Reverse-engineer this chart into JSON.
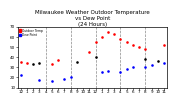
{
  "title": "Milwaukee Weather Outdoor Temperature\nvs Dew Point\n(24 Hours)",
  "title_fontsize": 4.0,
  "background_color": "#ffffff",
  "grid_color": "#888888",
  "hours": [
    0,
    1,
    2,
    3,
    4,
    5,
    6,
    7,
    8,
    9,
    10,
    11,
    12,
    13,
    14,
    15,
    16,
    17,
    18,
    19,
    20,
    21,
    22,
    23
  ],
  "temp": [
    35,
    34,
    null,
    null,
    null,
    null,
    37,
    null,
    null,
    null,
    null,
    45,
    55,
    60,
    65,
    62,
    58,
    55,
    52,
    50,
    48,
    null,
    null,
    52
  ],
  "dew": [
    22,
    null,
    null,
    18,
    null,
    17,
    null,
    19,
    20,
    null,
    null,
    null,
    null,
    25,
    26,
    null,
    25,
    28,
    30,
    null,
    30,
    32,
    null,
    34
  ],
  "black_pts": [
    null,
    null,
    33,
    34,
    null,
    null,
    null,
    null,
    null,
    35,
    null,
    null,
    40,
    null,
    null,
    null,
    null,
    null,
    null,
    null,
    38,
    null,
    36,
    null
  ],
  "temp_color": "#ff0000",
  "dew_color": "#0000ff",
  "black_color": "#000000",
  "marker_size": 3.5,
  "ylim": [
    10,
    70
  ],
  "yticks": [
    10,
    20,
    30,
    40,
    50,
    60,
    70
  ],
  "xtick_labels": [
    "12",
    "1",
    "2",
    "3",
    "4",
    "5",
    "6",
    "7",
    "8",
    "9",
    "10",
    "11",
    "12",
    "1",
    "2",
    "3",
    "4",
    "5",
    "6",
    "7",
    "8",
    "9",
    "10",
    "11"
  ],
  "xtick_fontsize": 3.0,
  "ytick_fontsize": 3.0,
  "legend_labels": [
    "Outdoor Temp",
    "Dew Point"
  ],
  "legend_colors": [
    "#ff0000",
    "#0000ff"
  ],
  "vgrid_positions": [
    4,
    8,
    12,
    16,
    20
  ]
}
